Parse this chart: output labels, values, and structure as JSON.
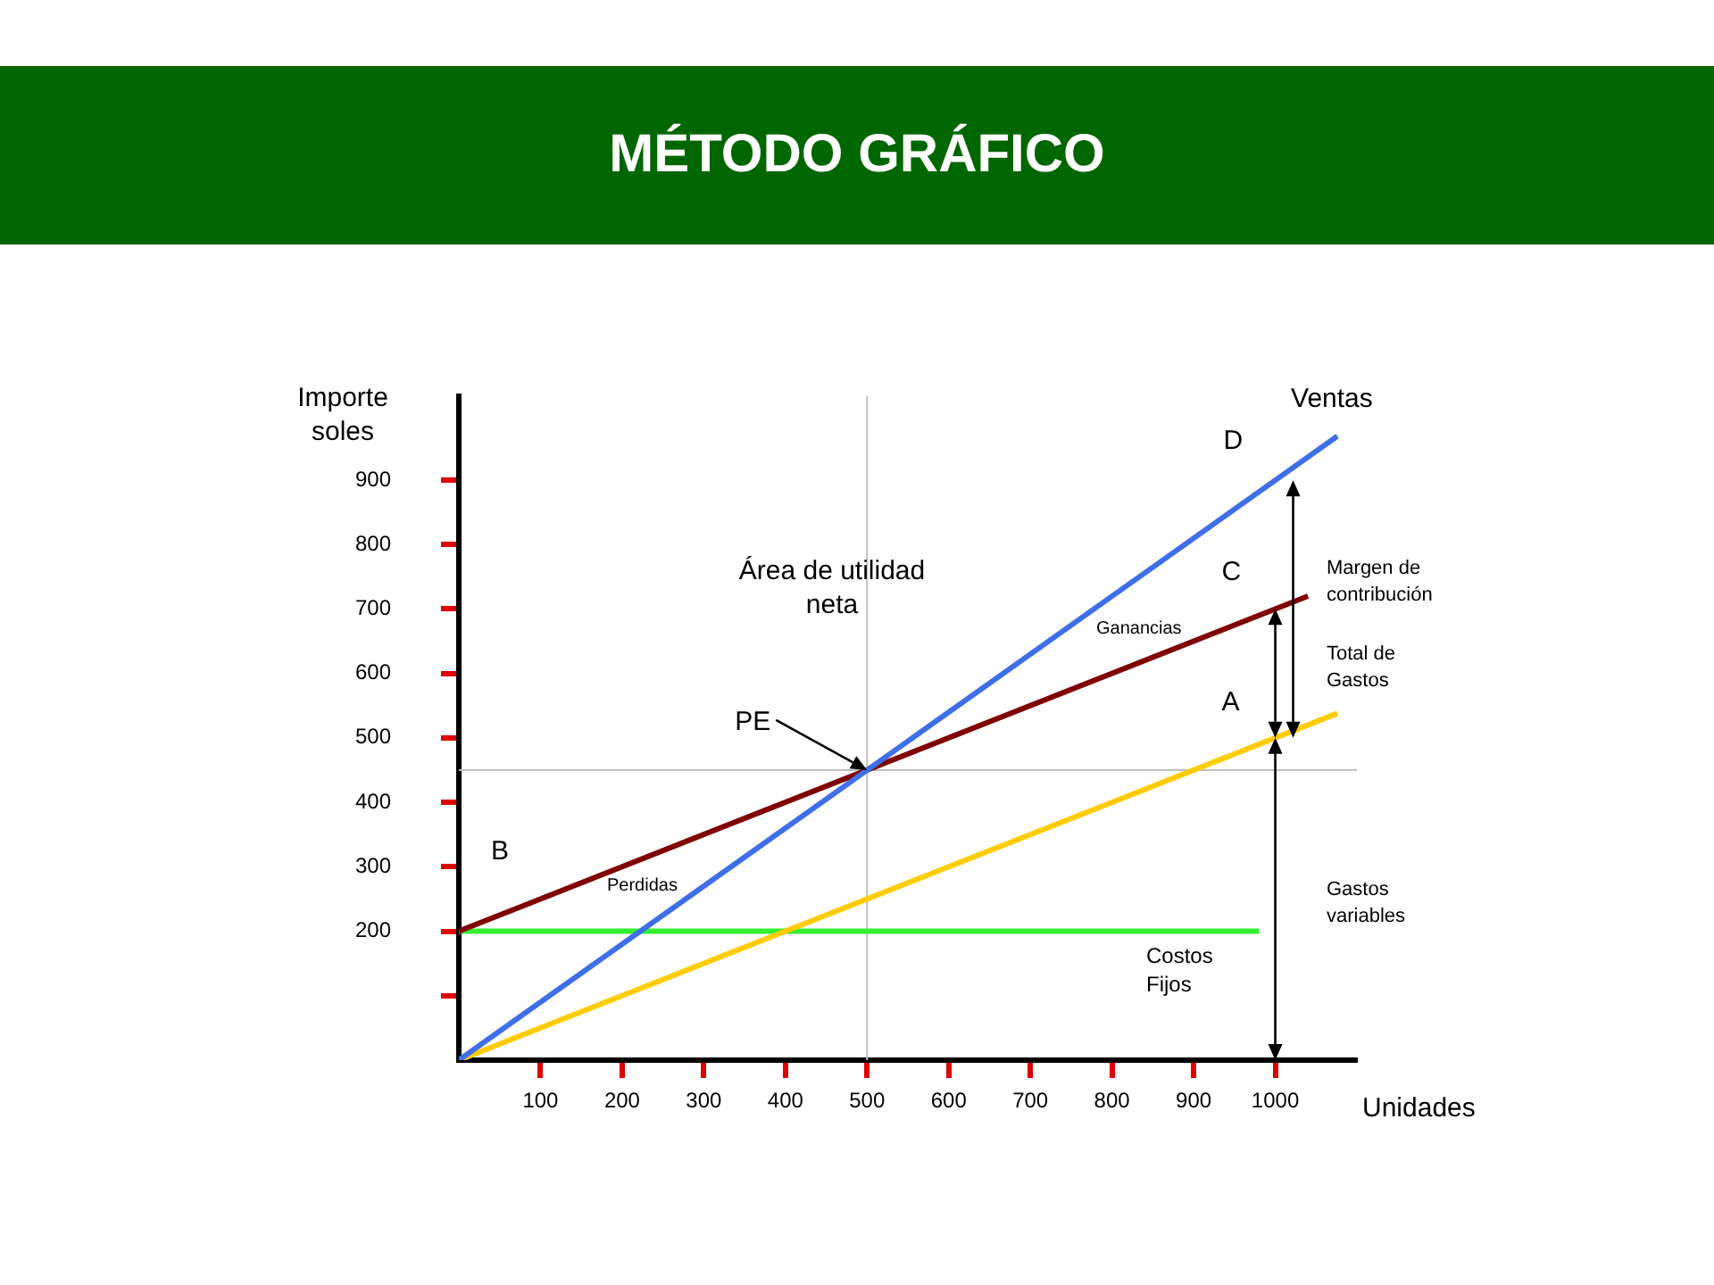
{
  "chart_data": {
    "type": "line",
    "title": "MÉTODO GRÁFICO",
    "ylabel": "Importe soles",
    "xlabel": "Unidades",
    "series": [
      {
        "color": "#3f6fe8",
        "x": [
          0,
          1076
        ],
        "values": [
          0,
          968
        ]
      },
      {
        "color": "#800000",
        "x": [
          0,
          1040
        ],
        "values": [
          200,
          720
        ]
      },
      {
        "color": "#ffcc00",
        "x": [
          0,
          1076
        ],
        "values": [
          0,
          538
        ]
      },
      {
        "color": "#33ee33",
        "x": [
          0,
          980
        ],
        "values": [
          200,
          200
        ]
      }
    ],
    "xlim": [
      0,
      1100
    ],
    "xticks": [
      100,
      200,
      300,
      400,
      500,
      600,
      700,
      800,
      900,
      1000
    ],
    "ylim": [
      0,
      1030
    ],
    "yticks": [
      {
        "value": 100,
        "label": null
      },
      200,
      300,
      400,
      500,
      600,
      700,
      800,
      900
    ],
    "grid": false,
    "legend": false,
    "marker": "none",
    "line_style": "solid",
    "ref_lines": [
      {
        "axis": "x",
        "value": 500,
        "color": "#c0c0c0"
      },
      {
        "axis": "y",
        "value": 450,
        "color": "#c0c0c0"
      }
    ],
    "annotations": [
      "Área de utilidad neta",
      "Ganancias",
      "Perdidas",
      "Costos Fijos",
      {
        "text": "PE",
        "x": 500,
        "y": 450
      },
      {
        "text": "A",
        "x": 1000,
        "y": 500
      },
      {
        "text": "B",
        "x": 0,
        "y": 200
      },
      {
        "text": "C",
        "x": 1000,
        "y": 700
      },
      {
        "text": "D",
        "x": 1000,
        "y": 900
      },
      "Margen de contribución",
      "Total de Gastos",
      "Gastos variables",
      {
        "text": "Ventas",
        "x": 1076,
        "y": 968
      }
    ]
  }
}
